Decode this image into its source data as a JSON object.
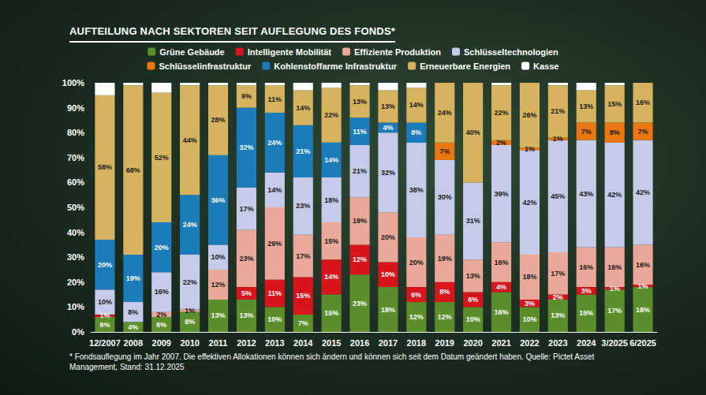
{
  "chart_data": {
    "type": "bar",
    "title": "AUFTEILUNG NACH SEKTOREN SEIT AUFLEGUNG DES FONDS*",
    "note": "* Fondsauflegung im Jahr 2007. Die effektiven Allokationen können sich ändern und können sich seit dem Datum geändert haben. Quelle: Pictet Asset Management, Stand: 31.12.2025",
    "stacked": true,
    "data_labels": true,
    "grid": false,
    "legend": "top",
    "categories": [
      "12/2007",
      "2008",
      "2009",
      "2010",
      "2011",
      "2012",
      "2013",
      "2014",
      "2015",
      "2016",
      "2017",
      "2018",
      "2019",
      "2020",
      "2021",
      "2022",
      "2023",
      "2024",
      "3/2025",
      "6/2025"
    ],
    "ylim": [
      0,
      100
    ],
    "yticks": [
      {
        "value": 0,
        "label": "0%"
      },
      {
        "value": 10,
        "label": "10%"
      },
      {
        "value": 20,
        "label": "20%"
      },
      {
        "value": 30,
        "label": "30%"
      },
      {
        "value": 40,
        "label": "40%"
      },
      {
        "value": 50,
        "label": "50%"
      },
      {
        "value": 60,
        "label": "60%"
      },
      {
        "value": 70,
        "label": "70%"
      },
      {
        "value": 80,
        "label": "80%"
      },
      {
        "value": 90,
        "label": "90%"
      },
      {
        "value": 100,
        "label": "100%"
      }
    ],
    "series": [
      {
        "name": "Grüne Gebäude",
        "color": "#5b8f2c",
        "values": [
          6,
          4,
          6,
          8,
          13,
          13,
          10,
          7,
          15,
          23,
          18,
          12,
          12,
          10,
          16,
          10,
          13,
          15,
          17,
          18
        ],
        "value_labels": [
          "6%",
          "4%",
          "6%",
          "8%",
          "13%",
          "13%",
          "10%",
          "7%",
          "15%",
          "23%",
          "18%",
          "12%",
          "12%",
          "10%",
          "16%",
          "10%",
          "13%",
          "15%",
          "17%",
          "18%"
        ]
      },
      {
        "name": "Intelligente Mobilität",
        "color": "#d8141c",
        "values": [
          1,
          0,
          0,
          0,
          0,
          5,
          11,
          15,
          14,
          12,
          10,
          6,
          8,
          6,
          4,
          3,
          2,
          3,
          1,
          1
        ],
        "value_labels": [
          "1%",
          null,
          null,
          null,
          null,
          "5%",
          "11%",
          "15%",
          "14%",
          "12%",
          "10%",
          "6%",
          "8%",
          "6%",
          "4%",
          "3%",
          "2%",
          "3%",
          "1%",
          "1%"
        ]
      },
      {
        "name": "Effiziente Produktion",
        "color": "#e9a898",
        "values": [
          0,
          0,
          2,
          1,
          12,
          23,
          29,
          17,
          15,
          19,
          20,
          20,
          19,
          13,
          16,
          18,
          17,
          16,
          16,
          16
        ],
        "value_labels": [
          null,
          null,
          "2%",
          "1%",
          "12%",
          "23%",
          "29%",
          "17%",
          "15%",
          "19%",
          "20%",
          "20%",
          "19%",
          "13%",
          "16%",
          "18%",
          "17%",
          "16%",
          "16%",
          "16%"
        ]
      },
      {
        "name": "Schlüsseltechnologien",
        "color": "#c6cbe9",
        "values": [
          10,
          8,
          16,
          22,
          10,
          17,
          14,
          23,
          18,
          21,
          32,
          38,
          30,
          31,
          39,
          42,
          45,
          43,
          42,
          42
        ],
        "value_labels": [
          "10%",
          "8%",
          "16%",
          "22%",
          "10%",
          "17%",
          "14%",
          "23%",
          "18%",
          "21%",
          "32%",
          "38%",
          "30%",
          "31%",
          "39%",
          "42%",
          "45%",
          "43%",
          "42%",
          "42%"
        ]
      },
      {
        "name": "Schlüsselinfrastruktur",
        "color": "#ea7712",
        "values": [
          0,
          0,
          0,
          0,
          0,
          0,
          0,
          0,
          0,
          0,
          0,
          0,
          7,
          0,
          2,
          1,
          1,
          7,
          8,
          7
        ],
        "value_labels": [
          null,
          null,
          null,
          null,
          null,
          null,
          null,
          null,
          null,
          null,
          null,
          null,
          "7%",
          null,
          "2%",
          "1%",
          "1%",
          "7%",
          "8%",
          "7%"
        ]
      },
      {
        "name": "Kohlenstoffarme Infrastruktur",
        "color": "#1b7bbb",
        "values": [
          20,
          19,
          20,
          24,
          36,
          32,
          24,
          21,
          14,
          11,
          4,
          8,
          0,
          0,
          0,
          0,
          0,
          0,
          0,
          0
        ],
        "value_labels": [
          "20%",
          "19%",
          "20%",
          "24%",
          "36%",
          "32%",
          "24%",
          "21%",
          "14%",
          "11%",
          "4%",
          "8%",
          null,
          null,
          null,
          null,
          null,
          null,
          null,
          null
        ]
      },
      {
        "name": "Erneuerbare Energien",
        "color": "#d6b35e",
        "values": [
          58,
          68,
          52,
          44,
          28,
          9,
          11,
          14,
          22,
          13,
          13,
          14,
          24,
          40,
          22,
          26,
          21,
          13,
          15,
          16
        ],
        "value_labels": [
          "58%",
          "68%",
          "52%",
          "44%",
          "28%",
          "9%",
          "11%",
          "14%",
          "22%",
          "13%",
          "13%",
          "14%",
          "24%",
          "40%",
          "22%",
          "26%",
          "21%",
          "13%",
          "15%",
          "16%"
        ]
      },
      {
        "name": "Kasse",
        "color": "#ffffff",
        "values": [
          5,
          1,
          4,
          1,
          1,
          1,
          1,
          3,
          2,
          1,
          3,
          2,
          0,
          0,
          1,
          0,
          1,
          3,
          1,
          0
        ],
        "value_labels": [
          null,
          null,
          null,
          null,
          null,
          null,
          null,
          null,
          null,
          null,
          null,
          null,
          null,
          null,
          null,
          null,
          null,
          null,
          null,
          null
        ]
      }
    ]
  }
}
